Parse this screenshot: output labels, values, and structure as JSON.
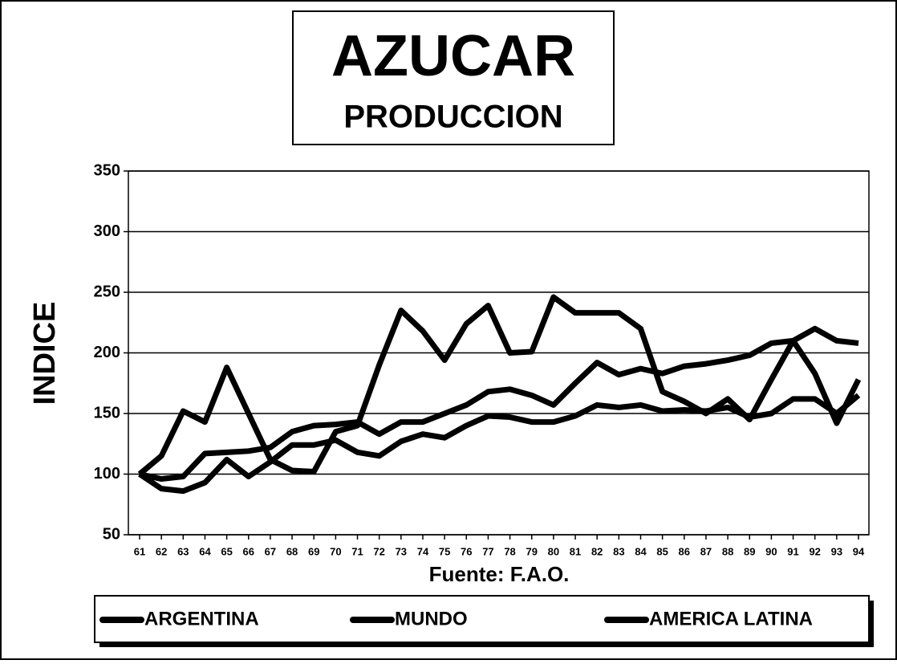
{
  "chart_data": {
    "type": "line",
    "title": "AZUCAR",
    "subtitle": "PRODUCCION",
    "y_label": "INDICE",
    "x_label": "Fuente: F.A.O.",
    "categories": [
      "61",
      "62",
      "63",
      "64",
      "65",
      "66",
      "67",
      "68",
      "69",
      "70",
      "71",
      "72",
      "73",
      "74",
      "75",
      "76",
      "77",
      "78",
      "79",
      "80",
      "81",
      "82",
      "83",
      "84",
      "85",
      "86",
      "87",
      "88",
      "89",
      "90",
      "91",
      "92",
      "93",
      "94"
    ],
    "series": [
      {
        "name": "ARGENTINA",
        "color": "#000000",
        "values": [
          100,
          115,
          152,
          143,
          188,
          150,
          112,
          103,
          102,
          135,
          140,
          190,
          235,
          218,
          194,
          224,
          239,
          200,
          201,
          246,
          233,
          233,
          233,
          220,
          168,
          160,
          150,
          162,
          145,
          178,
          210,
          183,
          142,
          178
        ]
      },
      {
        "name": "MUNDO",
        "color": "#000000",
        "values": [
          100,
          96,
          98,
          117,
          118,
          119,
          122,
          135,
          140,
          141,
          143,
          133,
          143,
          143,
          150,
          157,
          168,
          170,
          165,
          157,
          175,
          192,
          182,
          187,
          183,
          189,
          191,
          194,
          198,
          208,
          210,
          220,
          210,
          208
        ]
      },
      {
        "name": "AMERICA LATINA",
        "color": "#000000",
        "values": [
          100,
          88,
          86,
          93,
          112,
          98,
          110,
          124,
          124,
          128,
          118,
          115,
          127,
          133,
          130,
          140,
          148,
          147,
          143,
          143,
          148,
          157,
          155,
          157,
          152,
          153,
          152,
          155,
          147,
          150,
          162,
          162,
          150,
          165
        ]
      }
    ],
    "ylim": [
      50,
      350
    ],
    "yticks": [
      50,
      100,
      150,
      200,
      250,
      300,
      350
    ],
    "grid": true
  }
}
